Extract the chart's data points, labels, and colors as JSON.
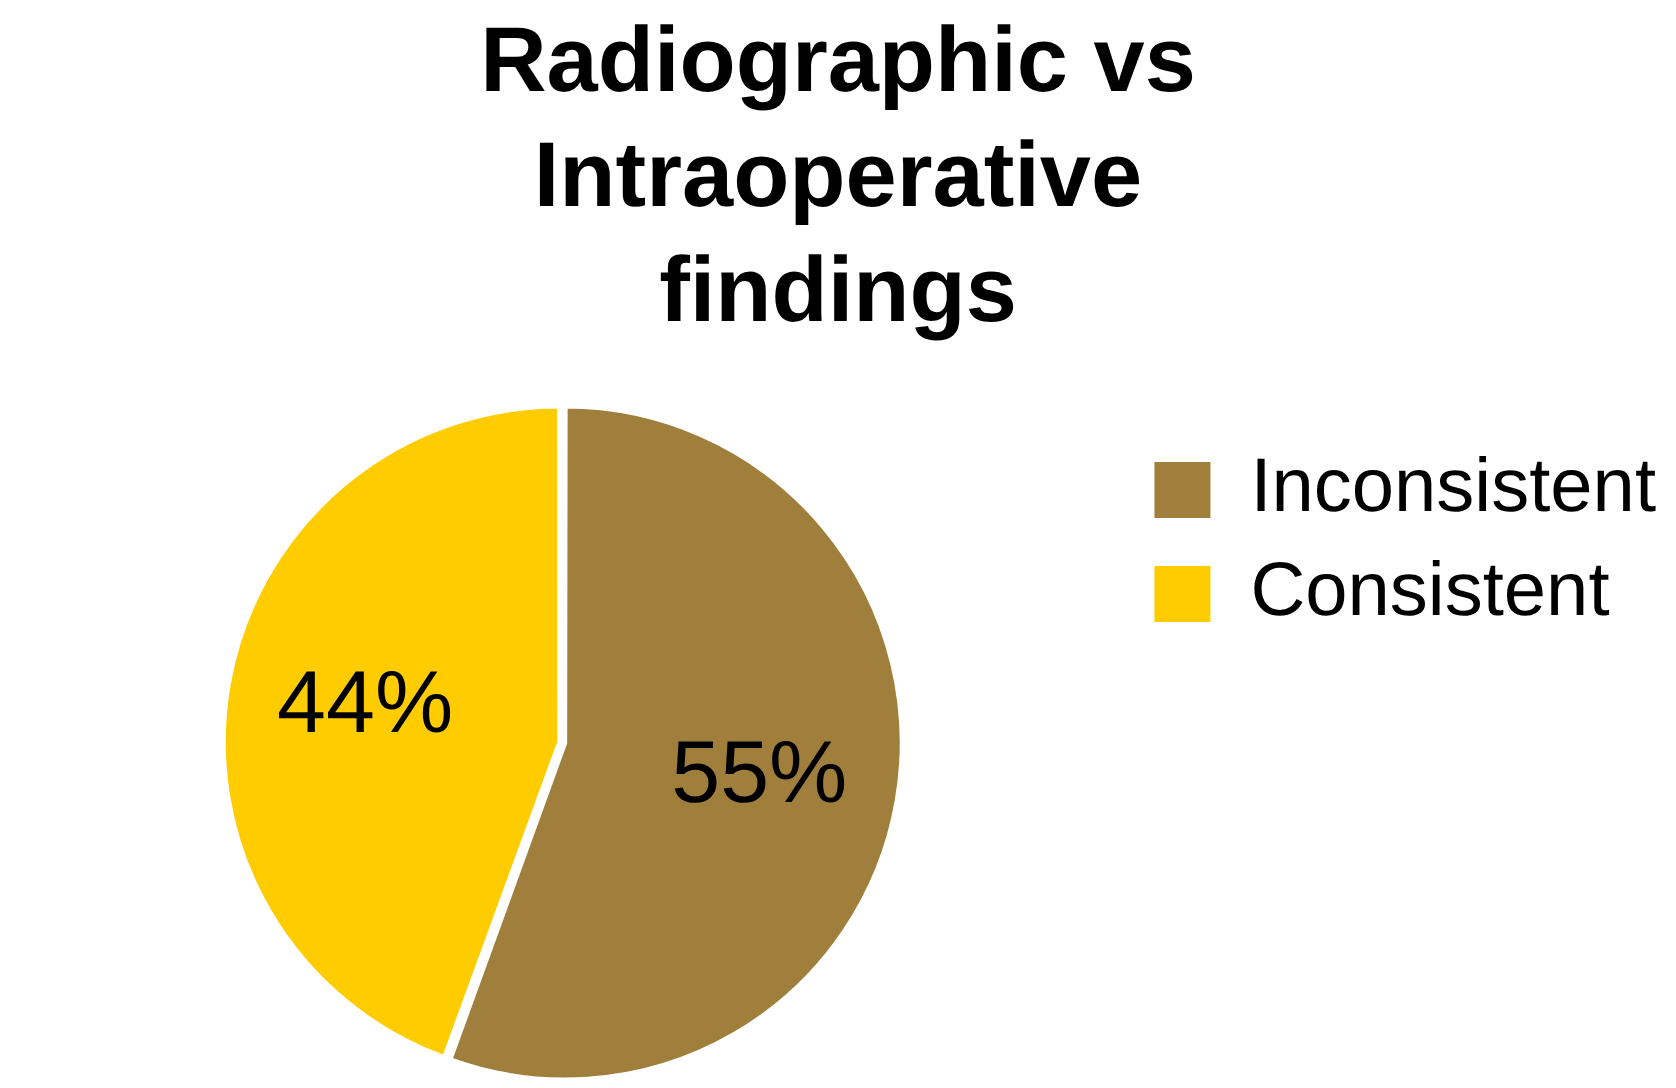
{
  "chart_data": {
    "type": "pie",
    "title": "Radiographic vs Intraoperative findings",
    "categories": [
      "Inconsistent",
      "Consistent"
    ],
    "values": [
      55,
      44
    ],
    "value_labels": [
      "55%",
      "44%"
    ],
    "colors": [
      "#a07f3c",
      "#ffcc00"
    ],
    "legend": "right"
  }
}
